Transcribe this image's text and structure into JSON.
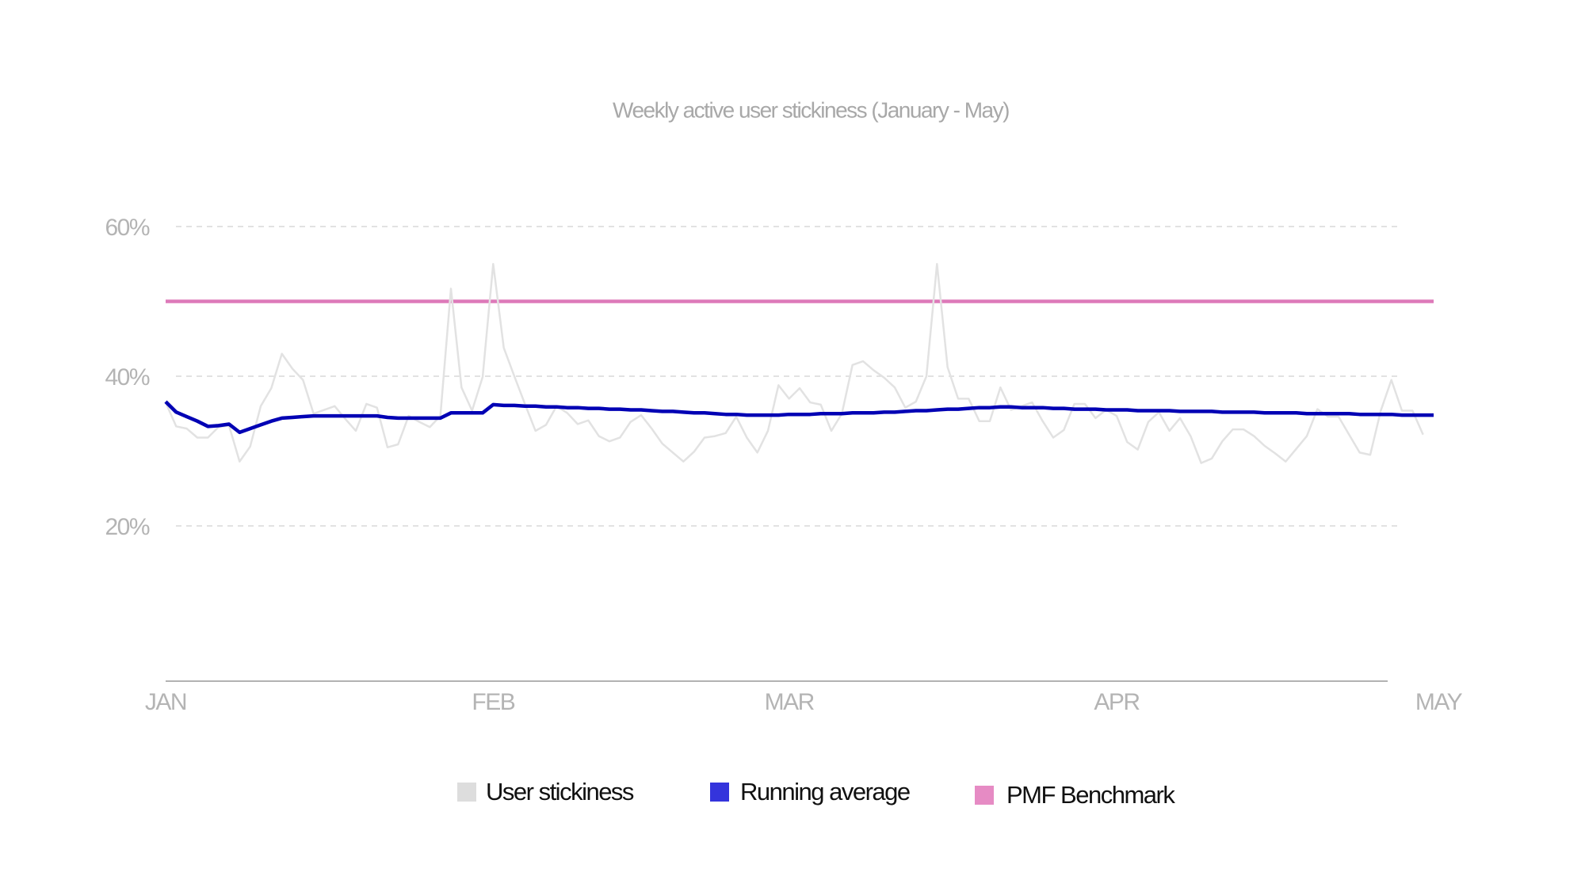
{
  "chart_data": {
    "type": "line",
    "title": "Weekly active user stickiness (January - May)",
    "categories": [
      "JAN",
      null,
      null,
      null,
      null,
      null,
      null,
      null,
      null,
      null,
      null,
      null,
      null,
      null,
      null,
      null,
      null,
      null,
      null,
      null,
      null,
      null,
      null,
      null,
      null,
      null,
      null,
      null,
      null,
      null,
      null,
      "FEB",
      null,
      null,
      null,
      null,
      null,
      null,
      null,
      null,
      null,
      null,
      null,
      null,
      null,
      null,
      null,
      null,
      null,
      null,
      null,
      null,
      null,
      null,
      null,
      null,
      null,
      null,
      null,
      "MAR",
      null,
      null,
      null,
      null,
      null,
      null,
      null,
      null,
      null,
      null,
      null,
      null,
      null,
      null,
      null,
      null,
      null,
      null,
      null,
      null,
      null,
      null,
      null,
      null,
      null,
      null,
      null,
      null,
      null,
      null,
      "APR",
      null,
      null,
      null,
      null,
      null,
      null,
      null,
      null,
      null,
      null,
      null,
      null,
      null,
      null,
      null,
      null,
      null,
      null,
      null,
      null,
      null,
      null,
      null,
      null,
      null,
      null,
      null,
      null,
      null,
      "MAY"
    ],
    "series": [
      {
        "name": "User stickiness",
        "color": "#e2e2e2",
        "legend_color": "#dddddd",
        "values": [
          36.5,
          33.3,
          33,
          31.8,
          31.8,
          33.2,
          33.4,
          28.6,
          30.6,
          36,
          38.4,
          43,
          41,
          39.5,
          35,
          35.5,
          36,
          34.3,
          32.7,
          36.3,
          35.8,
          30.5,
          30.9,
          34.7,
          33.9,
          33.2,
          34.7,
          51.7,
          38.5,
          35.4,
          39.9,
          55,
          43.8,
          40,
          36.3,
          32.7,
          33.5,
          36,
          35.1,
          33.6,
          34.1,
          32,
          31.3,
          31.8,
          33.9,
          34.8,
          33,
          31,
          29.8,
          28.6,
          29.9,
          31.8,
          32,
          32.4,
          34.6,
          31.8,
          29.8,
          32.7,
          38.8,
          37,
          38.4,
          36.5,
          36.2,
          32.7,
          35,
          41.5,
          42,
          40.8,
          39.8,
          38.5,
          35.8,
          36.6,
          40,
          55,
          41.2,
          37,
          37,
          34,
          34,
          38.5,
          35.5,
          36,
          36.5,
          34,
          31.8,
          32.8,
          36.3,
          36.3,
          34.4,
          35.5,
          34.7,
          31.2,
          30.2,
          33.9,
          35.2,
          32.7,
          34.4,
          32,
          28.4,
          29,
          31.3,
          32.9,
          32.9,
          32,
          30.7,
          29.7,
          28.6,
          30.3,
          32,
          35.6,
          34.6,
          34.6,
          32.2,
          29.8,
          29.5,
          35.4,
          39.5,
          35.4,
          35.4,
          32.2,
          null
        ]
      },
      {
        "name": "Running average",
        "color": "#0000b4",
        "legend_color": "#3434dc",
        "values": [
          36.6,
          35.2,
          34.6,
          34,
          33.3,
          33.4,
          33.6,
          32.5,
          33,
          33.5,
          34,
          34.4,
          34.5,
          34.6,
          34.7,
          34.7,
          34.7,
          34.7,
          34.7,
          34.7,
          34.7,
          34.5,
          34.4,
          34.4,
          34.4,
          34.4,
          34.4,
          35.1,
          35.1,
          35.1,
          35.1,
          36.2,
          36.1,
          36.1,
          36,
          36,
          35.9,
          35.9,
          35.8,
          35.8,
          35.7,
          35.7,
          35.6,
          35.6,
          35.5,
          35.5,
          35.4,
          35.3,
          35.3,
          35.2,
          35.1,
          35.1,
          35,
          34.9,
          34.9,
          34.8,
          34.8,
          34.8,
          34.8,
          34.9,
          34.9,
          34.9,
          35,
          35,
          35,
          35.1,
          35.1,
          35.1,
          35.2,
          35.2,
          35.3,
          35.4,
          35.4,
          35.5,
          35.6,
          35.6,
          35.7,
          35.8,
          35.8,
          35.9,
          35.9,
          35.8,
          35.8,
          35.8,
          35.7,
          35.7,
          35.6,
          35.6,
          35.6,
          35.5,
          35.5,
          35.5,
          35.4,
          35.4,
          35.4,
          35.4,
          35.3,
          35.3,
          35.3,
          35.3,
          35.2,
          35.2,
          35.2,
          35.2,
          35.1,
          35.1,
          35.1,
          35.1,
          35,
          35,
          35,
          35,
          35,
          34.9,
          34.9,
          34.9,
          34.9,
          34.8,
          34.8,
          34.8,
          34.8
        ]
      }
    ],
    "reference_line": {
      "name": "PMF Benchmark",
      "value": 50,
      "color": "#dd7ab9",
      "legend_color": "#e68bc4"
    },
    "ylim": [
      0,
      60
    ],
    "yticks": [
      {
        "value": 20,
        "label": "20%"
      },
      {
        "value": 40,
        "label": "40%"
      },
      {
        "value": 60,
        "label": "60%"
      }
    ],
    "grid": true
  }
}
